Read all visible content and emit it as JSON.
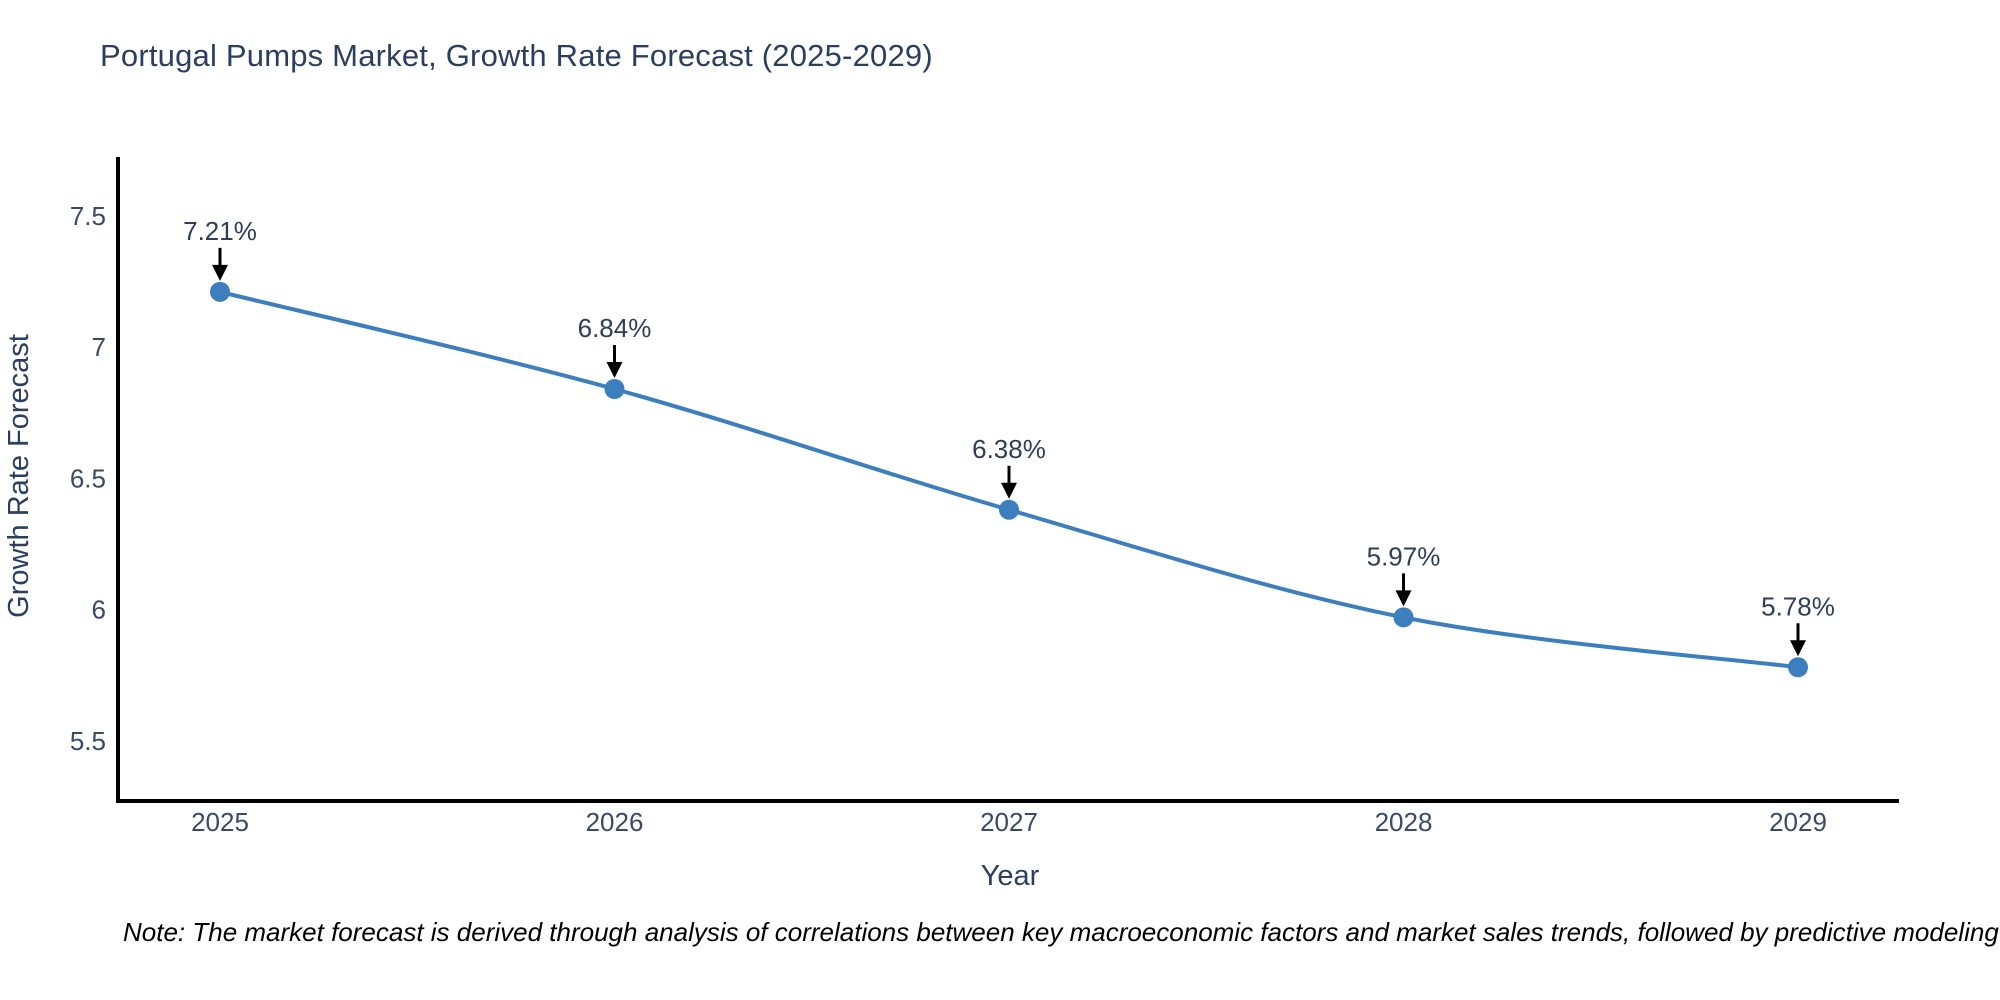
{
  "title": "Portugal Pumps Market, Growth Rate Forecast (2025-2029)",
  "note": "Note: The market forecast is derived through analysis of correlations between key macroeconomic factors and market sales trends, followed by predictive modeling to project future sales",
  "chart_data": {
    "type": "line",
    "categories": [
      "2025",
      "2026",
      "2027",
      "2028",
      "2029"
    ],
    "values": [
      7.21,
      6.84,
      6.38,
      5.97,
      5.78
    ],
    "point_labels": [
      "7.21%",
      "6.84%",
      "6.38%",
      "5.97%",
      "5.78%"
    ],
    "title": "Portugal Pumps Market, Growth Rate Forecast (2025-2029)",
    "xlabel": "Year",
    "ylabel": "Growth Rate Forecast",
    "yticks": [
      7.5,
      7,
      6.5,
      6,
      5.5
    ],
    "ytick_labels": [
      "7.5",
      "7",
      "6.5",
      "6",
      "5.5"
    ],
    "ylim": [
      5.27,
      7.72
    ],
    "grid": false,
    "legend": false,
    "line_shape": "spline",
    "colors": {
      "line": "#3d7ebf",
      "marker": "#3d7ebf",
      "axis_line": "#000000",
      "axis_text": "#3a4a66",
      "title_text": "#2a3f5f",
      "annotation_text": "#2e3d59",
      "annotation_arrow": "#000000",
      "background": "#ffffff"
    }
  }
}
